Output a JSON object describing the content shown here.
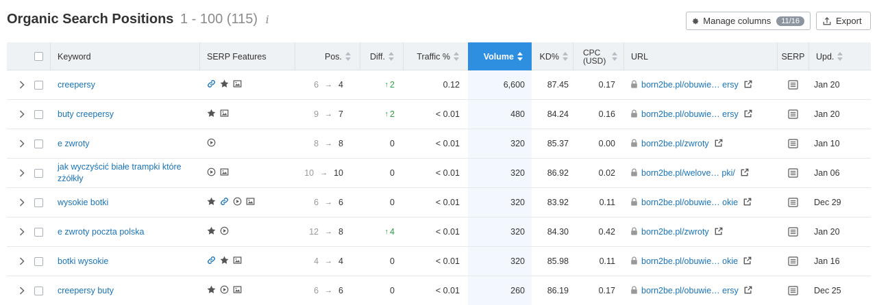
{
  "header": {
    "title": "Organic Search Positions",
    "count": "1 - 100 (115)",
    "info_glyph": "i",
    "manage_columns_label": "Manage columns",
    "manage_columns_badge": "11/16",
    "export_label": "Export"
  },
  "columns": {
    "keyword": "Keyword",
    "serp_features": "SERP Features",
    "pos": "Pos.",
    "diff": "Diff.",
    "traffic": "Traffic %",
    "volume": "Volume",
    "kd": "KD%",
    "cpc_line1": "CPC",
    "cpc_line2": "(USD)",
    "url": "URL",
    "serp": "SERP",
    "upd": "Upd."
  },
  "rows": [
    {
      "keyword": "creepersy",
      "features": [
        "link-icon",
        "star-icon",
        "image-icon"
      ],
      "pos_from": "6",
      "pos_to": "4",
      "diff": "2",
      "diff_up": true,
      "traffic": "0.12",
      "volume": "6,600",
      "kd": "87.45",
      "cpc": "0.17",
      "url": "born2be.pl/obuwie… ersy",
      "upd": "Jan 20"
    },
    {
      "keyword": "buty creepersy",
      "features": [
        "star-icon",
        "image-icon"
      ],
      "pos_from": "9",
      "pos_to": "7",
      "diff": "2",
      "diff_up": true,
      "traffic": "< 0.01",
      "volume": "480",
      "kd": "84.24",
      "cpc": "0.16",
      "url": "born2be.pl/obuwie… ersy",
      "upd": "Jan 20"
    },
    {
      "keyword": "e zwroty",
      "features": [
        "video-icon"
      ],
      "pos_from": "8",
      "pos_to": "8",
      "diff": "0",
      "diff_up": false,
      "traffic": "< 0.01",
      "volume": "320",
      "kd": "85.37",
      "cpc": "0.00",
      "url": "born2be.pl/zwroty",
      "upd": "Jan 10"
    },
    {
      "keyword": "jak wyczyścić białe trampki które zżółkły",
      "features": [
        "video-icon",
        "image-icon"
      ],
      "pos_from": "10",
      "pos_to": "10",
      "diff": "0",
      "diff_up": false,
      "traffic": "< 0.01",
      "volume": "320",
      "kd": "86.92",
      "cpc": "0.02",
      "url": "born2be.pl/welove… pki/",
      "upd": "Jan 06"
    },
    {
      "keyword": "wysokie botki",
      "features": [
        "star-icon",
        "link-icon",
        "video-icon",
        "image-icon"
      ],
      "pos_from": "6",
      "pos_to": "6",
      "diff": "0",
      "diff_up": false,
      "traffic": "< 0.01",
      "volume": "320",
      "kd": "83.92",
      "cpc": "0.11",
      "url": "born2be.pl/obuwie… okie",
      "upd": "Dec 29"
    },
    {
      "keyword": "e zwroty poczta polska",
      "features": [
        "star-icon",
        "video-icon"
      ],
      "pos_from": "12",
      "pos_to": "8",
      "diff": "4",
      "diff_up": true,
      "traffic": "< 0.01",
      "volume": "320",
      "kd": "84.30",
      "cpc": "0.42",
      "url": "born2be.pl/zwroty",
      "upd": "Jan 20"
    },
    {
      "keyword": "botki wysokie",
      "features": [
        "link-icon",
        "star-icon",
        "image-icon"
      ],
      "pos_from": "4",
      "pos_to": "4",
      "diff": "0",
      "diff_up": false,
      "traffic": "< 0.01",
      "volume": "320",
      "kd": "85.98",
      "cpc": "0.11",
      "url": "born2be.pl/obuwie… okie",
      "upd": "Jan 16"
    },
    {
      "keyword": "creepersy buty",
      "features": [
        "star-icon",
        "video-icon",
        "image-icon"
      ],
      "pos_from": "6",
      "pos_to": "6",
      "diff": "0",
      "diff_up": false,
      "traffic": "< 0.01",
      "volume": "260",
      "kd": "86.19",
      "cpc": "0.17",
      "url": "born2be.pl/obuwie… ersy",
      "upd": "Dec 25"
    }
  ]
}
